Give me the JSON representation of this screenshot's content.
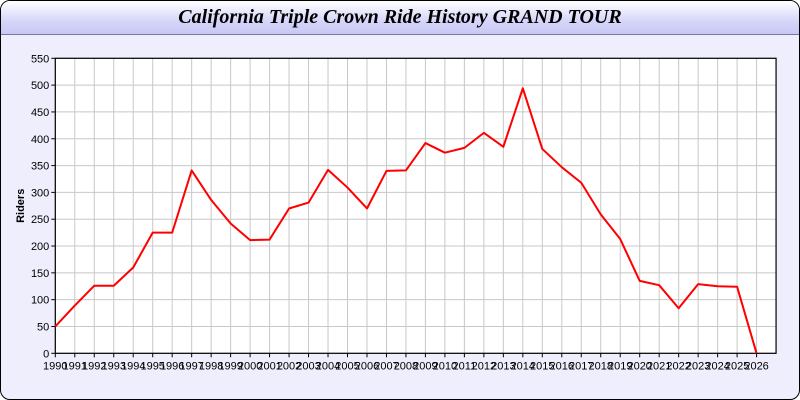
{
  "chart_data": {
    "type": "line",
    "title": "California Triple Crown Ride History GRAND TOUR",
    "xlabel": "",
    "ylabel": "Riders",
    "ylim": [
      0,
      550
    ],
    "xlim": [
      1990,
      2027
    ],
    "yticks": [
      0,
      50,
      100,
      150,
      200,
      250,
      300,
      350,
      400,
      450,
      500,
      550
    ],
    "grid": true,
    "line_color": "#ff0000",
    "x": [
      1990,
      1991,
      1992,
      1993,
      1994,
      1995,
      1996,
      1997,
      1998,
      1999,
      2000,
      2001,
      2002,
      2003,
      2004,
      2005,
      2006,
      2007,
      2008,
      2009,
      2010,
      2011,
      2012,
      2013,
      2014,
      2015,
      2016,
      2017,
      2018,
      2019,
      2020,
      2021,
      2022,
      2023,
      2024,
      2025,
      2026
    ],
    "values": [
      50,
      89,
      126,
      126,
      160,
      225,
      225,
      341,
      286,
      242,
      211,
      212,
      270,
      281,
      342,
      309,
      270,
      340,
      341,
      392,
      374,
      383,
      411,
      385,
      494,
      381,
      347,
      318,
      259,
      213,
      135,
      127,
      84,
      129,
      125,
      124,
      0
    ]
  }
}
